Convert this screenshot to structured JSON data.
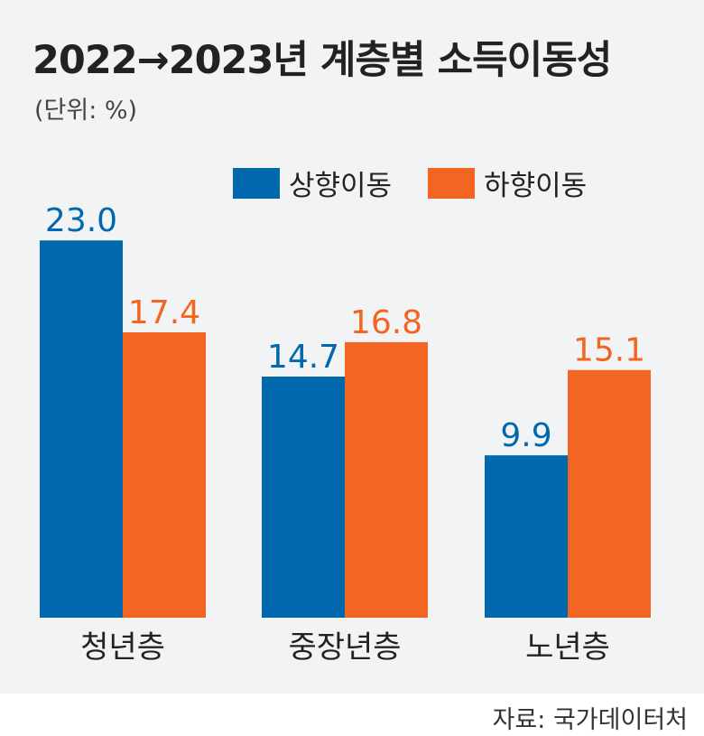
{
  "title": "2022→2023년 계층별 소득이동성",
  "unit": "(단위: %)",
  "source": "자료: 국가데이터처",
  "colors": {
    "up": "#0068ac",
    "down": "#f26522",
    "background": "#f2f3f5"
  },
  "legend": [
    {
      "name": "상향이동",
      "color": "#0068ac"
    },
    {
      "name": "하향이동",
      "color": "#f26522"
    }
  ],
  "chart_data": {
    "type": "bar",
    "title": "2022→2023년 계층별 소득이동성",
    "unit": "%",
    "categories": [
      "청년층",
      "중장년층",
      "노년층"
    ],
    "series": [
      {
        "name": "상향이동",
        "values": [
          23.0,
          14.7,
          9.9
        ]
      },
      {
        "name": "하향이동",
        "values": [
          17.4,
          16.8,
          15.1
        ]
      }
    ],
    "value_labels": [
      [
        "23.0",
        "14.7",
        "9.9"
      ],
      [
        "17.4",
        "16.8",
        "15.1"
      ]
    ],
    "ylim": [
      0,
      24.5
    ],
    "xlabel": "",
    "ylabel": ""
  }
}
